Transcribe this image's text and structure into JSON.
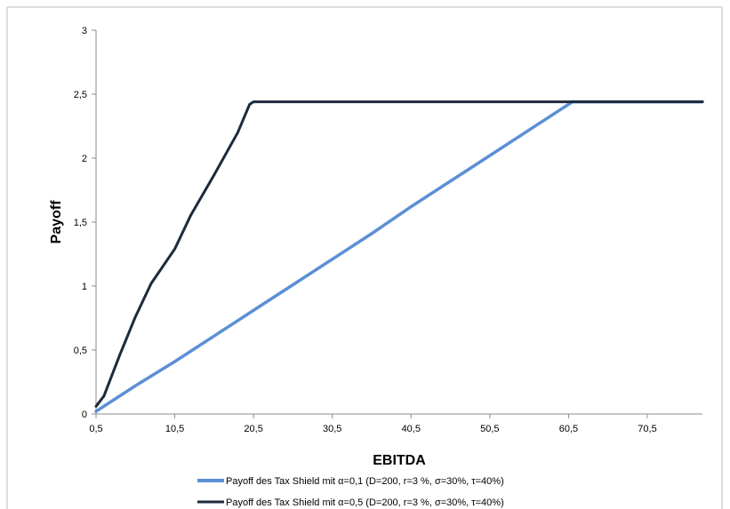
{
  "chart_data": {
    "type": "line",
    "title": "",
    "xlabel": "EBITDA",
    "ylabel": "Payoff",
    "xlim": [
      0.5,
      77.5
    ],
    "ylim": [
      0,
      3
    ],
    "x_ticks": [
      "0,5",
      "10,5",
      "20,5",
      "30,5",
      "40,5",
      "50,5",
      "60,5",
      "70,5"
    ],
    "x_tick_values": [
      0.5,
      10.5,
      20.5,
      30.5,
      40.5,
      50.5,
      60.5,
      70.5
    ],
    "y_ticks": [
      "0",
      "0,5",
      "1",
      "1,5",
      "2",
      "2,5",
      "3"
    ],
    "y_tick_values": [
      0,
      0.5,
      1,
      1.5,
      2,
      2.5,
      3
    ],
    "grid": false,
    "legend_position": "bottom",
    "series": [
      {
        "name": "Payoff des Tax Shield mit α=0,1 (D=200, r=3 %, σ=30%, τ=40%)",
        "color": "#5b8fd6",
        "x": [
          0.5,
          5.5,
          10.5,
          15.5,
          20.5,
          25.5,
          30.5,
          35.5,
          40.5,
          45.5,
          50.5,
          55.5,
          60.5,
          61.0,
          77.5
        ],
        "y": [
          0.02,
          0.22,
          0.41,
          0.61,
          0.81,
          1.01,
          1.21,
          1.41,
          1.62,
          1.82,
          2.02,
          2.22,
          2.42,
          2.44,
          2.44
        ]
      },
      {
        "name": "Payoff des Tax Shield mit α=0,5 (D=200, r=3 %, σ=30%, τ=40%)",
        "color": "#1c2a3c",
        "x": [
          0.5,
          1.5,
          3.5,
          5.5,
          7.5,
          10.5,
          12.5,
          15.5,
          18.5,
          20.0,
          20.5,
          30.5,
          40.5,
          50.5,
          60.5,
          70.5,
          77.5
        ],
        "y": [
          0.06,
          0.14,
          0.46,
          0.76,
          1.02,
          1.29,
          1.55,
          1.87,
          2.2,
          2.42,
          2.44,
          2.44,
          2.44,
          2.44,
          2.44,
          2.44,
          2.44
        ]
      }
    ]
  }
}
